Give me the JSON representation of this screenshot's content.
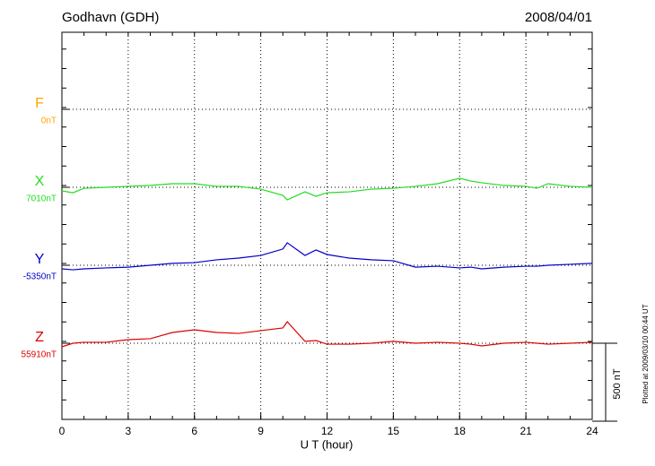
{
  "chart_data": {
    "type": "line",
    "title": "Godhavn (GDH)",
    "date": "2008/04/01",
    "x_label": "U T (hour)",
    "side_note": "Plotted at 2009/03/10 00:44 UT",
    "xlim": [
      0,
      24
    ],
    "xticks": [
      0,
      3,
      6,
      9,
      12,
      15,
      18,
      21,
      24
    ],
    "grid": true,
    "scale_bar": {
      "value": 500,
      "label": "500 nT"
    },
    "x": [
      0,
      0.5,
      1,
      2,
      3,
      4,
      5,
      6,
      7,
      8,
      9,
      10,
      10.2,
      11,
      11.5,
      12,
      13,
      14,
      15,
      16,
      17,
      18,
      18.5,
      19,
      20,
      21,
      21.5,
      22,
      23,
      24
    ],
    "series": [
      {
        "name": "F",
        "color": "#ffa500",
        "baseline_label": "0nT",
        "values": [
          null,
          null,
          null,
          null,
          null,
          null,
          null,
          null,
          null,
          null,
          null,
          null,
          null,
          null,
          null,
          null,
          null,
          null,
          null,
          null,
          null,
          null,
          null,
          null,
          null,
          null,
          null,
          null,
          null,
          null
        ]
      },
      {
        "name": "X",
        "color": "#22dd22",
        "baseline_label": "7010nT",
        "values": [
          -23,
          -35,
          -6,
          0,
          6,
          12,
          23,
          23,
          6,
          6,
          -12,
          -52,
          -81,
          -29,
          -58,
          -35,
          -29,
          -12,
          -6,
          6,
          23,
          58,
          40,
          29,
          12,
          6,
          -6,
          23,
          6,
          0
        ]
      },
      {
        "name": "Y",
        "color": "#0000cc",
        "baseline_label": "-5350nT",
        "values": [
          -23,
          -29,
          -23,
          -17,
          -12,
          0,
          12,
          17,
          35,
          46,
          63,
          104,
          144,
          63,
          98,
          69,
          46,
          35,
          29,
          -12,
          -6,
          -17,
          -12,
          -23,
          -12,
          -6,
          -6,
          0,
          6,
          12
        ]
      },
      {
        "name": "Z",
        "color": "#dd0000",
        "baseline_label": "55910nT",
        "values": [
          -23,
          0,
          6,
          6,
          23,
          29,
          69,
          86,
          69,
          63,
          81,
          98,
          138,
          12,
          17,
          -6,
          -6,
          0,
          12,
          0,
          6,
          0,
          -6,
          -17,
          0,
          6,
          0,
          -6,
          0,
          6
        ]
      }
    ]
  }
}
